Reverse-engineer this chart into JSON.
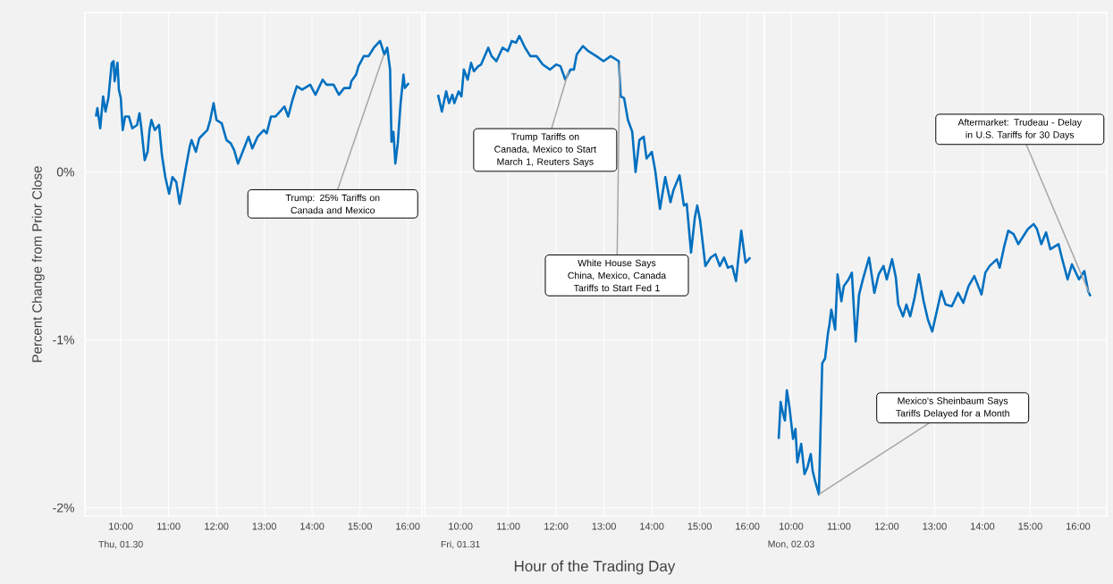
{
  "chart_data": [
    {
      "type": "line",
      "ylabel": "Percent Change from Prior Close",
      "color": "#0070c0",
      "grid": true,
      "xlim": [
        9.25,
        16.3
      ],
      "ylim": [
        -2.05,
        0.95
      ],
      "xticks": [
        {
          "value": 10,
          "label": "10:00"
        },
        {
          "value": 11,
          "label": "11:00"
        },
        {
          "value": 12,
          "label": "12:00"
        },
        {
          "value": 13,
          "label": "13:00"
        },
        {
          "value": 14,
          "label": "14:00"
        },
        {
          "value": 15,
          "label": "15:00"
        },
        {
          "value": 16,
          "label": "16:00"
        }
      ],
      "yticks": [
        {
          "value": 0,
          "label": "0%"
        },
        {
          "value": -1,
          "label": "-1%"
        },
        {
          "value": -2,
          "label": "-2%"
        }
      ],
      "x": [
        9.48,
        9.51,
        9.57,
        9.63,
        9.68,
        9.74,
        9.81,
        9.85,
        9.87,
        9.93,
        9.96,
        10.0,
        10.04,
        10.09,
        10.17,
        10.24,
        10.34,
        10.39,
        10.43,
        10.5,
        10.56,
        10.6,
        10.64,
        10.71,
        10.8,
        10.86,
        10.93,
        11.01,
        11.08,
        11.16,
        11.23,
        11.35,
        11.44,
        11.48,
        11.57,
        11.64,
        11.74,
        11.81,
        11.87,
        11.94,
        12.0,
        12.11,
        12.21,
        12.3,
        12.37,
        12.45,
        12.52,
        12.67,
        12.75,
        12.86,
        12.99,
        13.05,
        13.14,
        13.23,
        13.36,
        13.42,
        13.5,
        13.59,
        13.68,
        13.79,
        13.96,
        14.07,
        14.22,
        14.3,
        14.45,
        14.56,
        14.67,
        14.79,
        14.82,
        14.92,
        14.97,
        15.08,
        15.14,
        15.18,
        15.29,
        15.42,
        15.51,
        15.57,
        15.63,
        15.66,
        15.7,
        15.74,
        15.79,
        15.83,
        15.85,
        15.91,
        15.94,
        16.02
      ],
      "values": [
        0.33,
        0.38,
        0.26,
        0.45,
        0.36,
        0.44,
        0.65,
        0.66,
        0.54,
        0.65,
        0.49,
        0.44,
        0.25,
        0.33,
        0.33,
        0.26,
        0.28,
        0.35,
        0.26,
        0.07,
        0.12,
        0.25,
        0.31,
        0.25,
        0.28,
        0.1,
        -0.03,
        -0.13,
        -0.03,
        -0.06,
        -0.19,
        0.01,
        0.15,
        0.19,
        0.12,
        0.2,
        0.23,
        0.25,
        0.31,
        0.41,
        0.31,
        0.29,
        0.19,
        0.17,
        0.13,
        0.05,
        0.1,
        0.21,
        0.14,
        0.21,
        0.25,
        0.23,
        0.33,
        0.33,
        0.37,
        0.39,
        0.33,
        0.43,
        0.51,
        0.49,
        0.52,
        0.46,
        0.55,
        0.52,
        0.52,
        0.46,
        0.5,
        0.5,
        0.54,
        0.58,
        0.63,
        0.69,
        0.69,
        0.69,
        0.74,
        0.78,
        0.7,
        0.74,
        0.61,
        0.18,
        0.24,
        0.05,
        0.17,
        0.33,
        0.41,
        0.58,
        0.5,
        0.53
      ],
      "annotations": [
        {
          "text": "Trump: 25% Tariffs on Canada and Mexico",
          "x": 15.5,
          "y": 0.7
        },
        "Thu, 01.30"
      ]
    },
    {
      "type": "line",
      "xlabel": "Hour of the Trading Day",
      "color": "#0070c0",
      "grid": true,
      "tick_labels": "x",
      "xlim": [
        9.25,
        16.35
      ],
      "ylim": [
        -2.05,
        0.95
      ],
      "xticks": [
        {
          "value": 10,
          "label": "10:00"
        },
        {
          "value": 11,
          "label": "11:00"
        },
        {
          "value": 12,
          "label": "12:00"
        },
        {
          "value": 13,
          "label": "13:00"
        },
        {
          "value": 14,
          "label": "14:00"
        },
        {
          "value": 15,
          "label": "15:00"
        },
        {
          "value": 16,
          "label": "16:00"
        }
      ],
      "yticks": [
        {
          "value": 0,
          "label": null
        },
        {
          "value": -1,
          "label": null
        },
        {
          "value": -2,
          "label": null
        }
      ],
      "x": [
        9.53,
        9.61,
        9.7,
        9.76,
        9.83,
        9.87,
        9.96,
        10.02,
        10.07,
        10.15,
        10.22,
        10.28,
        10.37,
        10.43,
        10.58,
        10.65,
        10.75,
        10.88,
        10.99,
        11.07,
        11.16,
        11.23,
        11.35,
        11.46,
        11.59,
        11.72,
        11.87,
        12.0,
        12.09,
        12.19,
        12.3,
        12.37,
        12.43,
        12.56,
        12.67,
        12.84,
        12.99,
        13.14,
        13.31,
        13.35,
        13.42,
        13.5,
        13.59,
        13.66,
        13.74,
        13.83,
        13.89,
        14.0,
        14.07,
        14.17,
        14.28,
        14.39,
        14.45,
        14.58,
        14.67,
        14.73,
        14.82,
        14.9,
        14.95,
        15.01,
        15.12,
        15.23,
        15.33,
        15.42,
        15.51,
        15.59,
        15.68,
        15.76,
        15.87,
        15.96,
        16.06
      ],
      "values": [
        0.46,
        0.36,
        0.48,
        0.41,
        0.46,
        0.41,
        0.48,
        0.45,
        0.61,
        0.55,
        0.65,
        0.6,
        0.63,
        0.64,
        0.74,
        0.69,
        0.66,
        0.74,
        0.72,
        0.78,
        0.77,
        0.81,
        0.74,
        0.69,
        0.69,
        0.64,
        0.61,
        0.64,
        0.63,
        0.55,
        0.61,
        0.61,
        0.7,
        0.75,
        0.72,
        0.69,
        0.66,
        0.69,
        0.66,
        0.45,
        0.44,
        0.31,
        0.24,
        0.0,
        0.19,
        0.21,
        0.08,
        0.12,
        0.01,
        -0.22,
        -0.03,
        -0.18,
        -0.11,
        -0.02,
        -0.2,
        -0.19,
        -0.48,
        -0.27,
        -0.2,
        -0.29,
        -0.56,
        -0.51,
        -0.49,
        -0.56,
        -0.51,
        -0.57,
        -0.56,
        -0.65,
        -0.35,
        -0.54,
        -0.51
      ],
      "annotations": [
        {
          "text": "Trump Tariffs on Canada, Mexico to Start March 1, Reuters Says",
          "x": 12.26,
          "y": 0.6
        },
        {
          "text": "White House Says China, Mexico, Canada Tariffs to Start Fed 1",
          "x": 13.33,
          "y": 0.65
        },
        "Fri, 01.31"
      ]
    },
    {
      "type": "line",
      "color": "#0070c0",
      "grid": true,
      "tick_labels": "x",
      "xlim": [
        9.44,
        16.6
      ],
      "ylim": [
        -2.05,
        0.95
      ],
      "xticks": [
        {
          "value": 10,
          "label": "10:00"
        },
        {
          "value": 11,
          "label": "11:00"
        },
        {
          "value": 12,
          "label": "12:00"
        },
        {
          "value": 13,
          "label": "13:00"
        },
        {
          "value": 14,
          "label": "14:00"
        },
        {
          "value": 15,
          "label": "15:00"
        },
        {
          "value": 16,
          "label": "16:00"
        }
      ],
      "yticks": [
        {
          "value": 0,
          "label": null
        },
        {
          "value": -1,
          "label": null
        },
        {
          "value": -2,
          "label": null
        }
      ],
      "x": [
        9.74,
        9.78,
        9.83,
        9.87,
        9.91,
        9.96,
        10.04,
        10.09,
        10.13,
        10.21,
        10.28,
        10.34,
        10.41,
        10.45,
        10.5,
        10.58,
        10.65,
        10.71,
        10.77,
        10.8,
        10.84,
        10.92,
        10.97,
        11.05,
        11.1,
        11.2,
        11.27,
        11.35,
        11.42,
        11.5,
        11.63,
        11.74,
        11.83,
        11.93,
        12.0,
        12.11,
        12.19,
        12.24,
        12.34,
        12.41,
        12.49,
        12.58,
        12.67,
        12.77,
        12.86,
        12.95,
        13.14,
        13.23,
        13.36,
        13.49,
        13.6,
        13.71,
        13.83,
        13.98,
        14.06,
        14.15,
        14.3,
        14.36,
        14.45,
        14.54,
        14.65,
        14.75,
        14.86,
        14.95,
        15.07,
        15.14,
        15.23,
        15.33,
        15.42,
        15.59,
        15.66,
        15.78,
        15.87,
        16.02,
        16.13,
        16.21,
        16.26
      ],
      "values": [
        -1.59,
        -1.37,
        -1.44,
        -1.48,
        -1.3,
        -1.39,
        -1.59,
        -1.53,
        -1.73,
        -1.62,
        -1.8,
        -1.76,
        -1.68,
        -1.78,
        -1.84,
        -1.92,
        -1.14,
        -1.11,
        -0.96,
        -0.91,
        -0.82,
        -0.94,
        -0.61,
        -0.77,
        -0.68,
        -0.64,
        -0.6,
        -1.01,
        -0.73,
        -0.64,
        -0.51,
        -0.72,
        -0.61,
        -0.56,
        -0.64,
        -0.52,
        -0.63,
        -0.79,
        -0.86,
        -0.79,
        -0.86,
        -0.75,
        -0.61,
        -0.77,
        -0.88,
        -0.95,
        -0.71,
        -0.79,
        -0.8,
        -0.72,
        -0.78,
        -0.68,
        -0.62,
        -0.73,
        -0.6,
        -0.56,
        -0.52,
        -0.57,
        -0.45,
        -0.35,
        -0.37,
        -0.43,
        -0.38,
        -0.34,
        -0.31,
        -0.34,
        -0.43,
        -0.36,
        -0.46,
        -0.43,
        -0.51,
        -0.64,
        -0.55,
        -0.64,
        -0.59,
        -0.71,
        -0.74
      ],
      "annotations": [
        {
          "text": "Mexico's Sheinbaum Says Tariffs Delayed for a Month",
          "x": 10.58,
          "y": -1.92
        },
        {
          "text": "Aftermarket: Trudeau - Delay in U.S. Tariffs for 30 Days",
          "x": 16.23,
          "y": -0.72
        },
        "Mon, 02.03"
      ]
    }
  ]
}
